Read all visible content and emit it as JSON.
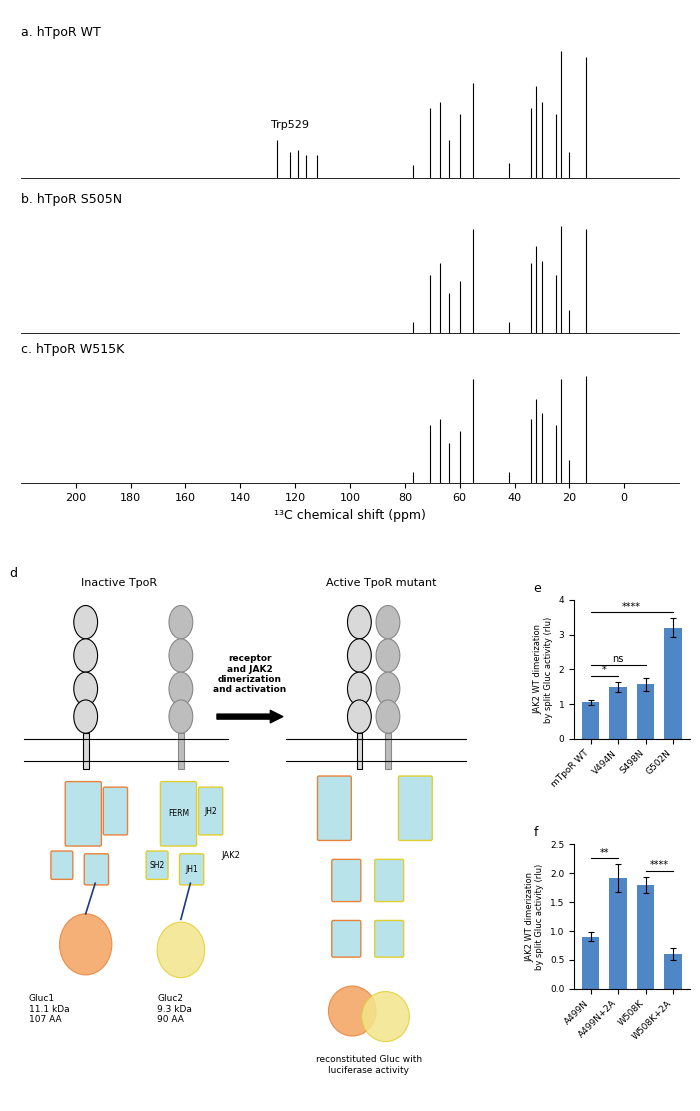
{
  "chart_data": [
    {
      "type": "spectrum",
      "title": "a. hTpoR WT",
      "x": [
        126.5,
        122,
        119,
        116,
        112,
        77,
        71,
        67,
        64,
        60,
        55,
        42,
        34,
        32,
        30,
        25,
        23,
        20,
        14
      ],
      "values": [
        0.3,
        0.2,
        0.22,
        0.18,
        0.18,
        0.1,
        0.55,
        0.6,
        0.3,
        0.5,
        0.75,
        0.12,
        0.55,
        0.72,
        0.6,
        0.5,
        1.0,
        0.2,
        0.95
      ],
      "xlim": [
        220,
        -20
      ],
      "ylim": [
        0,
        1.05
      ],
      "tick_labels": false,
      "annotations": [
        {
          "text": "Trp529",
          "x": 122
        }
      ]
    },
    {
      "type": "spectrum",
      "title": "b. hTpoR S505N",
      "x": [
        77,
        71,
        67,
        64,
        60,
        55,
        42,
        34,
        32,
        30,
        25,
        23,
        20,
        14
      ],
      "values": [
        0.1,
        0.5,
        0.6,
        0.35,
        0.45,
        0.9,
        0.1,
        0.6,
        0.75,
        0.62,
        0.5,
        0.92,
        0.2,
        0.9
      ],
      "xlim": [
        220,
        -20
      ],
      "ylim": [
        0,
        1.05
      ],
      "tick_labels": false
    },
    {
      "type": "spectrum",
      "title": "c. hTpoR W515K",
      "x": [
        77,
        71,
        67,
        64,
        60,
        55,
        42,
        34,
        32,
        30,
        25,
        23,
        20,
        14
      ],
      "values": [
        0.1,
        0.5,
        0.55,
        0.35,
        0.45,
        0.9,
        0.1,
        0.55,
        0.72,
        0.6,
        0.5,
        0.9,
        0.2,
        0.92
      ],
      "xlim": [
        220,
        -20
      ],
      "ylim": [
        0,
        1.05
      ],
      "tick_labels": "x",
      "xlabel": "¹³C chemical shift (ppm)",
      "xticks": [
        200,
        180,
        160,
        140,
        120,
        100,
        80,
        60,
        40,
        20,
        0
      ]
    },
    {
      "type": "bar",
      "title": "e",
      "categories": [
        "mTpoR WT",
        "V494N",
        "S498N",
        "G502N"
      ],
      "values": [
        1.05,
        1.5,
        1.57,
        3.2
      ],
      "errors": [
        0.07,
        0.15,
        0.18,
        0.28
      ],
      "color": "#4f86c6",
      "ylabel": "JAK2 WT dimerization\nby split Gluc activity (rlu)",
      "ylim": [
        0,
        4
      ],
      "yticks": [
        0,
        1,
        2,
        3,
        4
      ],
      "significance": [
        {
          "from": 0,
          "to": 1,
          "label": "*"
        },
        {
          "from": 0,
          "to": 2,
          "label": "ns"
        },
        {
          "from": 0,
          "to": 3,
          "label": "****"
        }
      ]
    },
    {
      "type": "bar",
      "title": "f",
      "categories": [
        "A499N",
        "A499N+2A",
        "W508K",
        "W508K+2A"
      ],
      "values": [
        0.9,
        1.92,
        1.8,
        0.6
      ],
      "errors": [
        0.08,
        0.24,
        0.14,
        0.1
      ],
      "color": "#4f86c6",
      "ylabel": "JAK2 WT dimerization\nby split Gluc activity (rlu)",
      "ylim": [
        0,
        2.5
      ],
      "yticks": [
        {
          "value": 0,
          "label": "0.0"
        },
        {
          "value": 0.5,
          "label": "0.5"
        },
        {
          "value": 1,
          "label": "1.0"
        },
        {
          "value": 1.5,
          "label": "1.5"
        },
        {
          "value": 2,
          "label": "2.0"
        },
        {
          "value": 2.5,
          "label": "2.5"
        }
      ],
      "significance": [
        {
          "from": 0,
          "to": 1,
          "label": "**"
        },
        {
          "from": 2,
          "to": 3,
          "label": "****"
        }
      ]
    }
  ],
  "diagram": {
    "panel_label": "d",
    "left_title": "Inactive TpoR",
    "right_title": "Active TpoR mutant",
    "arrow_label": "receptor\nand JAK2\ndimerization\nand activation",
    "domains": {
      "ferm": "FERM",
      "jh2": "JH2",
      "sh2": "SH2",
      "jh1": "JH1"
    },
    "protein": "JAK2",
    "gluc1": "Gluc1\n11.1 kDa\n107 AA",
    "gluc2": "Gluc2\n9.3 kDa\n90 AA",
    "reconstituted": "reconstituted Gluc with\nluciferase activity"
  }
}
